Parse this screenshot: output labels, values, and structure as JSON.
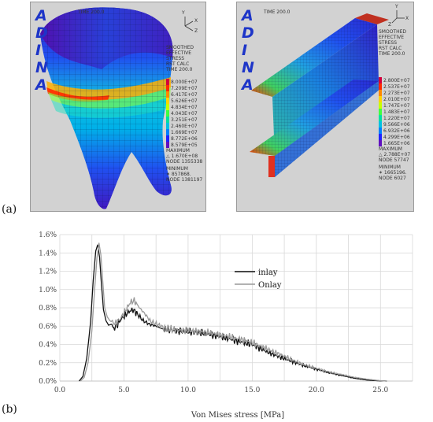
{
  "panel_a": {
    "label": "(a)",
    "logo_letters": [
      "A",
      "D",
      "I",
      "N",
      "A"
    ],
    "left": {
      "time": "TIME 200.0",
      "axis_labels": [
        "Y",
        "X",
        "Z"
      ],
      "title_lines": [
        "SMOOTHED",
        "EFFECTIVE",
        "STRESS",
        "RST CALC",
        "TIME 200.0"
      ],
      "legend_values": [
        "8.000E+07",
        "7.209E+07",
        "6.417E+07",
        "5.626E+07",
        "4.834E+07",
        "4.043E+07",
        "3.251E+07",
        "2.460E+07",
        "1.669E+07",
        "8.772E+06",
        "8.579E+05"
      ],
      "legend_colors": [
        "#d4003c",
        "#ff2a00",
        "#ff8a00",
        "#ffd400",
        "#c8ff00",
        "#40ff40",
        "#00e0a0",
        "#00c0e0",
        "#0080ff",
        "#2020ff",
        "#6010c0"
      ],
      "max_lines": [
        "MAXIMUM",
        "△ 1.670E+08",
        "NODE 1355338"
      ],
      "min_lines": [
        "MINIMUM",
        "✶ 857868.",
        "NODE 1381197"
      ]
    },
    "right": {
      "time": "TIME 200.0",
      "axis_labels": [
        "Y",
        "X",
        "Z"
      ],
      "title_lines": [
        "SMOOTHED",
        "EFFECTIVE",
        "STRESS",
        "RST CALC",
        "TIME 200.0"
      ],
      "legend_values": [
        "2.800E+07",
        "2.537E+07",
        "2.273E+07",
        "2.010E+07",
        "1.747E+07",
        "1.483E+07",
        "1.220E+07",
        "9.566E+06",
        "6.932E+06",
        "4.299E+06",
        "1.665E+06"
      ],
      "legend_colors": [
        "#d4003c",
        "#ff2a00",
        "#ff8a00",
        "#ffd400",
        "#c8ff00",
        "#40ff40",
        "#00e0a0",
        "#00c0e0",
        "#0080ff",
        "#2020ff",
        "#6010c0"
      ],
      "max_lines": [
        "MAXIMUM",
        "△ 2.788E+07",
        "NODE 57747"
      ],
      "min_lines": [
        "MINIMUM",
        "✶ 1665196.",
        "NODE 6027"
      ]
    }
  },
  "panel_b": {
    "label": "(b)"
  },
  "chart_data": {
    "type": "line",
    "title": "",
    "xlabel": "Von Mises stress [MPa]",
    "ylabel": "",
    "xlim": [
      0,
      27.5
    ],
    "ylim": [
      0,
      0.016
    ],
    "x_ticks": [
      "0.0",
      "5.0",
      "10.0",
      "15.0",
      "20.0",
      "25.0"
    ],
    "y_ticks": [
      "0.0%",
      "0.2%",
      "0.4%",
      "0.6%",
      "0.8%",
      "1.0%",
      "1.2%",
      "1.4%",
      "1.6%"
    ],
    "grid": true,
    "legend_position": "top-right",
    "series": [
      {
        "name": "inlay",
        "color": "#111111",
        "x": [
          1.5,
          1.8,
          2.1,
          2.4,
          2.6,
          2.8,
          2.95,
          3.1,
          3.25,
          3.4,
          3.6,
          3.8,
          4.0,
          4.2,
          4.5,
          4.8,
          5.1,
          5.4,
          5.7,
          6.0,
          6.5,
          7.0,
          7.5,
          8.0,
          9.0,
          10.0,
          11.0,
          12.0,
          13.0,
          14.0,
          15.0,
          16.0,
          17.0,
          18.0,
          19.0,
          20.0,
          21.0,
          22.0,
          23.0,
          24.0,
          25.0,
          25.5
        ],
        "y": [
          0.0,
          0.0005,
          0.0025,
          0.0065,
          0.011,
          0.0142,
          0.0149,
          0.0135,
          0.0105,
          0.0078,
          0.0066,
          0.0061,
          0.0062,
          0.0057,
          0.0062,
          0.0068,
          0.0072,
          0.0076,
          0.0078,
          0.0074,
          0.0066,
          0.0062,
          0.006,
          0.0057,
          0.0055,
          0.0054,
          0.0053,
          0.005,
          0.0047,
          0.0043,
          0.004,
          0.0033,
          0.0027,
          0.0022,
          0.0017,
          0.0013,
          0.0009,
          0.0006,
          0.0003,
          0.0001,
          2e-05,
          0.0
        ]
      },
      {
        "name": "Onlay",
        "color": "#999999",
        "x": [
          1.6,
          1.9,
          2.2,
          2.5,
          2.7,
          2.9,
          3.05,
          3.2,
          3.35,
          3.5,
          3.7,
          3.9,
          4.1,
          4.3,
          4.6,
          4.9,
          5.2,
          5.5,
          5.8,
          6.1,
          6.6,
          7.1,
          7.6,
          8.1,
          9.0,
          10.0,
          11.0,
          12.0,
          13.0,
          14.0,
          15.0,
          16.0,
          17.0,
          18.0,
          19.0,
          20.0,
          21.0,
          22.0,
          23.0,
          24.0,
          25.0,
          25.5
        ],
        "y": [
          0.0,
          0.0004,
          0.002,
          0.0055,
          0.0098,
          0.0135,
          0.0151,
          0.0138,
          0.0108,
          0.008,
          0.007,
          0.0066,
          0.0064,
          0.0063,
          0.0066,
          0.0072,
          0.0079,
          0.0086,
          0.0088,
          0.0082,
          0.0074,
          0.0065,
          0.0062,
          0.0058,
          0.0056,
          0.0055,
          0.0054,
          0.0052,
          0.0049,
          0.0046,
          0.0042,
          0.0036,
          0.003,
          0.0024,
          0.0018,
          0.0014,
          0.001,
          0.0007,
          0.0004,
          0.0002,
          4e-05,
          0.0
        ]
      }
    ]
  }
}
